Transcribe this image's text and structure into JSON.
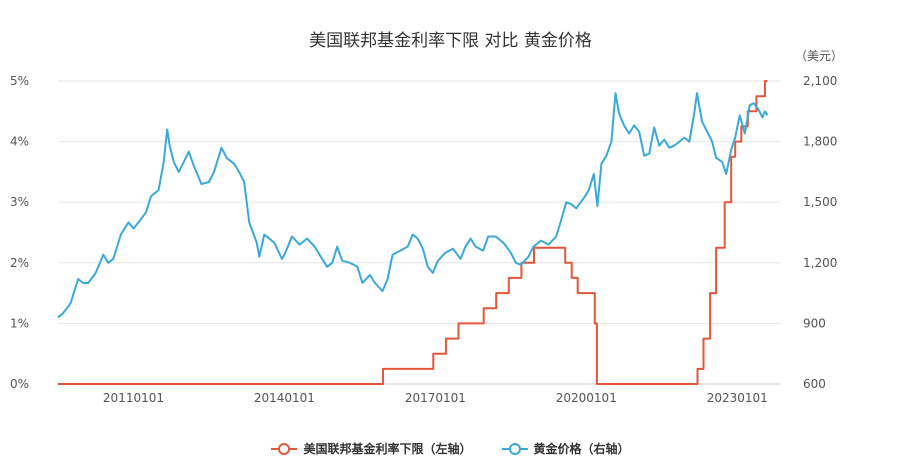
{
  "chart_data": {
    "type": "line",
    "title": "美国联邦基金利率下限 对比 黄金价格",
    "right_axis_unit": "（美元）",
    "x_tick_labels": [
      "20110101",
      "20140101",
      "20170101",
      "20200101",
      "20230101"
    ],
    "y_left": {
      "ticks": [
        "0%",
        "1%",
        "2%",
        "3%",
        "4%",
        "5%"
      ],
      "range": [
        0,
        5
      ]
    },
    "y_right": {
      "ticks": [
        "600",
        "900",
        "1,200",
        "1,500",
        "1,800",
        "2,100"
      ],
      "range": [
        600,
        2100
      ]
    },
    "x_range": [
      2009.5,
      2023.85
    ],
    "grid": true,
    "legend_position": "bottom",
    "series": [
      {
        "name": "美国联邦基金利率下限（左轴）",
        "axis": "left",
        "color": "#e2563b",
        "points": [
          [
            2009.5,
            0
          ],
          [
            2015.96,
            0
          ],
          [
            2015.96,
            0.25
          ],
          [
            2016.96,
            0.25
          ],
          [
            2016.96,
            0.5
          ],
          [
            2017.21,
            0.5
          ],
          [
            2017.21,
            0.75
          ],
          [
            2017.46,
            0.75
          ],
          [
            2017.46,
            1.0
          ],
          [
            2017.96,
            1.0
          ],
          [
            2017.96,
            1.25
          ],
          [
            2018.21,
            1.25
          ],
          [
            2018.21,
            1.5
          ],
          [
            2018.46,
            1.5
          ],
          [
            2018.46,
            1.75
          ],
          [
            2018.71,
            1.75
          ],
          [
            2018.71,
            2.0
          ],
          [
            2018.96,
            2.0
          ],
          [
            2018.96,
            2.25
          ],
          [
            2019.58,
            2.25
          ],
          [
            2019.58,
            2.0
          ],
          [
            2019.71,
            2.0
          ],
          [
            2019.71,
            1.75
          ],
          [
            2019.83,
            1.75
          ],
          [
            2019.83,
            1.5
          ],
          [
            2020.17,
            1.5
          ],
          [
            2020.17,
            1.0
          ],
          [
            2020.21,
            1.0
          ],
          [
            2020.21,
            0
          ],
          [
            2022.21,
            0
          ],
          [
            2022.21,
            0.25
          ],
          [
            2022.33,
            0.25
          ],
          [
            2022.33,
            0.75
          ],
          [
            2022.46,
            0.75
          ],
          [
            2022.46,
            1.5
          ],
          [
            2022.58,
            1.5
          ],
          [
            2022.58,
            2.25
          ],
          [
            2022.75,
            2.25
          ],
          [
            2022.75,
            3.0
          ],
          [
            2022.88,
            3.0
          ],
          [
            2022.88,
            3.75
          ],
          [
            2022.96,
            3.75
          ],
          [
            2022.96,
            4.0
          ],
          [
            2023.08,
            4.0
          ],
          [
            2023.08,
            4.25
          ],
          [
            2023.21,
            4.25
          ],
          [
            2023.21,
            4.5
          ],
          [
            2023.38,
            4.5
          ],
          [
            2023.38,
            4.75
          ],
          [
            2023.55,
            4.75
          ],
          [
            2023.55,
            5.0
          ],
          [
            2023.6,
            5.0
          ]
        ]
      },
      {
        "name": "黄金价格（右轴）",
        "axis": "right",
        "color": "#3aa9d8",
        "points": [
          [
            2009.5,
            930
          ],
          [
            2009.6,
            950
          ],
          [
            2009.75,
            1000
          ],
          [
            2009.9,
            1120
          ],
          [
            2010.0,
            1100
          ],
          [
            2010.1,
            1100
          ],
          [
            2010.25,
            1150
          ],
          [
            2010.4,
            1240
          ],
          [
            2010.5,
            1200
          ],
          [
            2010.6,
            1220
          ],
          [
            2010.75,
            1340
          ],
          [
            2010.9,
            1400
          ],
          [
            2011.0,
            1370
          ],
          [
            2011.1,
            1400
          ],
          [
            2011.25,
            1450
          ],
          [
            2011.35,
            1530
          ],
          [
            2011.5,
            1560
          ],
          [
            2011.6,
            1700
          ],
          [
            2011.67,
            1860
          ],
          [
            2011.72,
            1780
          ],
          [
            2011.8,
            1700
          ],
          [
            2011.9,
            1650
          ],
          [
            2012.0,
            1700
          ],
          [
            2012.1,
            1750
          ],
          [
            2012.2,
            1680
          ],
          [
            2012.35,
            1590
          ],
          [
            2012.5,
            1600
          ],
          [
            2012.6,
            1650
          ],
          [
            2012.75,
            1770
          ],
          [
            2012.85,
            1720
          ],
          [
            2013.0,
            1690
          ],
          [
            2013.1,
            1650
          ],
          [
            2013.2,
            1600
          ],
          [
            2013.3,
            1400
          ],
          [
            2013.45,
            1300
          ],
          [
            2013.5,
            1230
          ],
          [
            2013.6,
            1340
          ],
          [
            2013.7,
            1320
          ],
          [
            2013.8,
            1300
          ],
          [
            2013.95,
            1220
          ],
          [
            2014.0,
            1240
          ],
          [
            2014.15,
            1330
          ],
          [
            2014.3,
            1290
          ],
          [
            2014.45,
            1320
          ],
          [
            2014.6,
            1280
          ],
          [
            2014.75,
            1220
          ],
          [
            2014.85,
            1180
          ],
          [
            2014.95,
            1200
          ],
          [
            2015.05,
            1280
          ],
          [
            2015.15,
            1210
          ],
          [
            2015.3,
            1200
          ],
          [
            2015.45,
            1180
          ],
          [
            2015.55,
            1100
          ],
          [
            2015.7,
            1140
          ],
          [
            2015.8,
            1100
          ],
          [
            2015.95,
            1060
          ],
          [
            2016.05,
            1120
          ],
          [
            2016.15,
            1240
          ],
          [
            2016.3,
            1260
          ],
          [
            2016.45,
            1280
          ],
          [
            2016.55,
            1340
          ],
          [
            2016.65,
            1320
          ],
          [
            2016.75,
            1270
          ],
          [
            2016.85,
            1180
          ],
          [
            2016.95,
            1150
          ],
          [
            2017.05,
            1210
          ],
          [
            2017.2,
            1250
          ],
          [
            2017.35,
            1270
          ],
          [
            2017.5,
            1220
          ],
          [
            2017.6,
            1280
          ],
          [
            2017.7,
            1320
          ],
          [
            2017.8,
            1280
          ],
          [
            2017.95,
            1260
          ],
          [
            2018.05,
            1330
          ],
          [
            2018.2,
            1330
          ],
          [
            2018.35,
            1300
          ],
          [
            2018.5,
            1250
          ],
          [
            2018.6,
            1200
          ],
          [
            2018.7,
            1190
          ],
          [
            2018.85,
            1230
          ],
          [
            2018.95,
            1280
          ],
          [
            2019.1,
            1310
          ],
          [
            2019.25,
            1290
          ],
          [
            2019.4,
            1330
          ],
          [
            2019.5,
            1410
          ],
          [
            2019.6,
            1500
          ],
          [
            2019.7,
            1490
          ],
          [
            2019.8,
            1470
          ],
          [
            2019.95,
            1520
          ],
          [
            2020.05,
            1560
          ],
          [
            2020.15,
            1640
          ],
          [
            2020.22,
            1480
          ],
          [
            2020.3,
            1690
          ],
          [
            2020.4,
            1730
          ],
          [
            2020.5,
            1800
          ],
          [
            2020.58,
            2040
          ],
          [
            2020.65,
            1940
          ],
          [
            2020.75,
            1880
          ],
          [
            2020.85,
            1840
          ],
          [
            2020.95,
            1880
          ],
          [
            2021.05,
            1850
          ],
          [
            2021.15,
            1730
          ],
          [
            2021.25,
            1740
          ],
          [
            2021.35,
            1870
          ],
          [
            2021.45,
            1780
          ],
          [
            2021.55,
            1810
          ],
          [
            2021.65,
            1770
          ],
          [
            2021.75,
            1780
          ],
          [
            2021.85,
            1800
          ],
          [
            2021.95,
            1820
          ],
          [
            2022.05,
            1800
          ],
          [
            2022.15,
            1950
          ],
          [
            2022.2,
            2040
          ],
          [
            2022.3,
            1900
          ],
          [
            2022.4,
            1850
          ],
          [
            2022.5,
            1800
          ],
          [
            2022.58,
            1720
          ],
          [
            2022.7,
            1700
          ],
          [
            2022.78,
            1640
          ],
          [
            2022.88,
            1760
          ],
          [
            2022.96,
            1820
          ],
          [
            2023.05,
            1930
          ],
          [
            2023.15,
            1840
          ],
          [
            2023.25,
            1980
          ],
          [
            2023.33,
            1990
          ],
          [
            2023.42,
            1960
          ],
          [
            2023.5,
            1920
          ],
          [
            2023.55,
            1950
          ],
          [
            2023.6,
            1930
          ]
        ]
      }
    ]
  }
}
